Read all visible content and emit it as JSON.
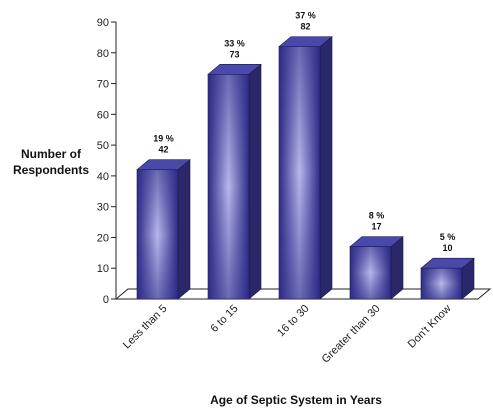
{
  "chart_data": {
    "type": "bar",
    "categories": [
      "Less than 5",
      "6 to 15",
      "16 to 30",
      "Greater than 30",
      "Don't Know"
    ],
    "values": [
      42,
      73,
      82,
      17,
      10
    ],
    "percent_labels": [
      "19 %",
      "33 %",
      "37 %",
      "8 %",
      "5 %"
    ],
    "value_labels": [
      "42",
      "73",
      "82",
      "17",
      "10"
    ],
    "xlabel": "Age of Septic System in Years",
    "ylabel": "Number of Respondents",
    "ylabel_lines": [
      "Number of",
      "Respondents"
    ],
    "ylim": [
      0,
      90
    ],
    "yticks": [
      0,
      10,
      20,
      30,
      40,
      50,
      60,
      70,
      80,
      90
    ],
    "ytick_labels": [
      "0",
      "10",
      "20",
      "30",
      "40",
      "50",
      "60",
      "70",
      "80",
      "90"
    ],
    "grid": false,
    "legend": "none",
    "colors": {
      "bar_center": "#b8b8ec",
      "bar_edge": "#2c2a86",
      "bar_side": "#2a2868",
      "bar_top": "#4a48a8",
      "floor_fill": "#ffffff",
      "axis": "#222222"
    }
  }
}
